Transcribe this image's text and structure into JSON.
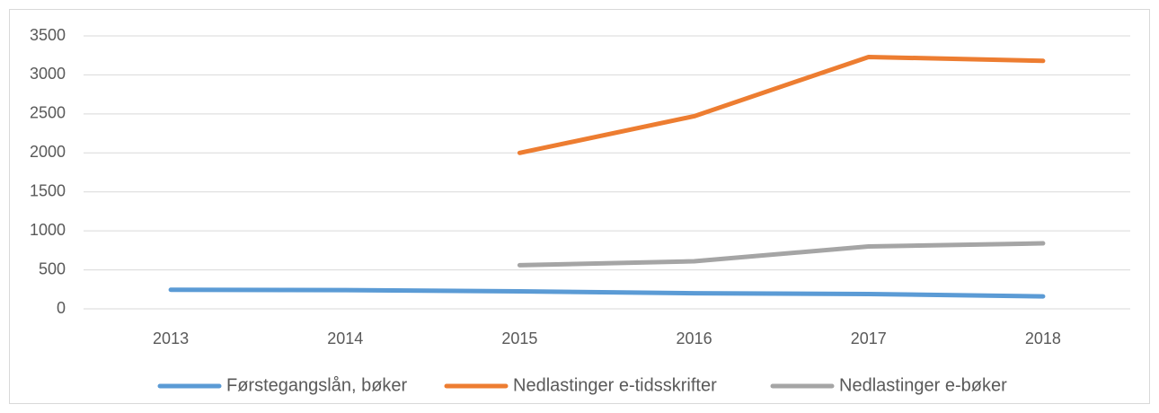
{
  "chart_data": {
    "type": "line",
    "categories": [
      "2013",
      "2014",
      "2015",
      "2016",
      "2017",
      "2018"
    ],
    "series": [
      {
        "name": "Førstegangslån, bøker",
        "color": "#5b9bd5",
        "values": [
          245,
          240,
          225,
          200,
          190,
          160
        ]
      },
      {
        "name": "Nedlastinger e-tidsskrifter",
        "color": "#ed7d31",
        "values": [
          null,
          null,
          2000,
          2470,
          3230,
          3180
        ]
      },
      {
        "name": "Nedlastinger e-bøker",
        "color": "#a5a5a5",
        "values": [
          null,
          null,
          560,
          610,
          800,
          840
        ]
      }
    ],
    "ylim": [
      0,
      3500
    ],
    "yticks": [
      0,
      500,
      1000,
      1500,
      2000,
      2500,
      3000,
      3500
    ],
    "grid": true,
    "legend": "bottom"
  }
}
